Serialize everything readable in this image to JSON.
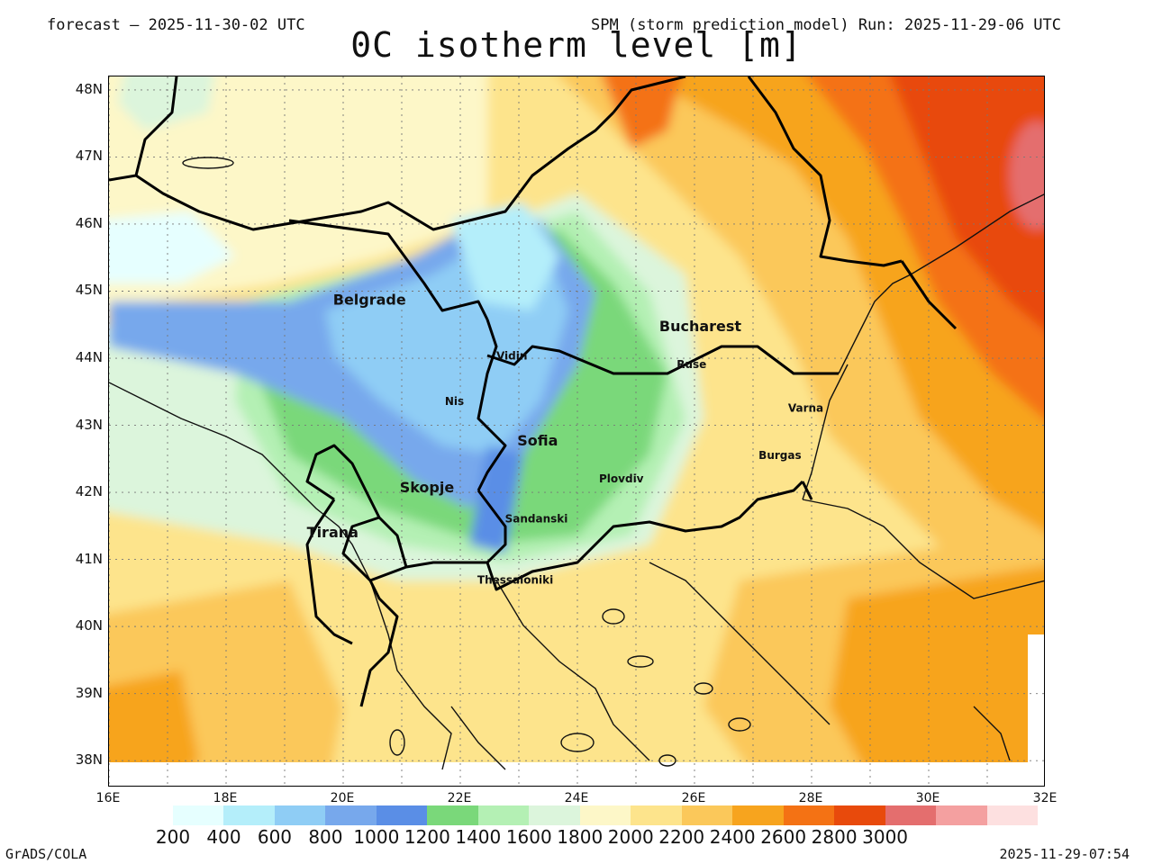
{
  "header": {
    "forecast_label": "forecast – 2025-11-30-02 UTC",
    "model_label": "SPM (storm prediction model) Run: 2025-11-29-06 UTC",
    "title": "0C isotherm level [m]"
  },
  "map": {
    "lon_range": [
      16,
      32
    ],
    "lat_range": [
      37.6,
      48.2
    ],
    "lat_labels": [
      "48N",
      "47N",
      "46N",
      "45N",
      "44N",
      "43N",
      "42N",
      "41N",
      "40N",
      "39N",
      "38N"
    ],
    "lat_values": [
      48,
      47,
      46,
      45,
      44,
      43,
      42,
      41,
      40,
      39,
      38
    ],
    "lon_labels": [
      "16E",
      "18E",
      "20E",
      "22E",
      "24E",
      "26E",
      "28E",
      "30E",
      "32E"
    ],
    "lon_values": [
      16,
      18,
      20,
      22,
      24,
      26,
      28,
      30,
      32
    ],
    "cities": [
      {
        "name": "Belgrade",
        "lon": 20.45,
        "lat": 44.8,
        "size": "large"
      },
      {
        "name": "Bucharest",
        "lon": 26.1,
        "lat": 44.4,
        "size": "large"
      },
      {
        "name": "Vidin",
        "lon": 22.88,
        "lat": 43.98,
        "size": "small"
      },
      {
        "name": "Ruse",
        "lon": 25.95,
        "lat": 43.85,
        "size": "small"
      },
      {
        "name": "Nis",
        "lon": 21.9,
        "lat": 43.3,
        "size": "small"
      },
      {
        "name": "Varna",
        "lon": 27.9,
        "lat": 43.2,
        "size": "small"
      },
      {
        "name": "Sofia",
        "lon": 23.32,
        "lat": 42.7,
        "size": "large"
      },
      {
        "name": "Burgas",
        "lon": 27.46,
        "lat": 42.5,
        "size": "small"
      },
      {
        "name": "Plovdiv",
        "lon": 24.75,
        "lat": 42.15,
        "size": "small"
      },
      {
        "name": "Skopje",
        "lon": 21.43,
        "lat": 42.0,
        "size": "large"
      },
      {
        "name": "Sandanski",
        "lon": 23.3,
        "lat": 41.55,
        "size": "small"
      },
      {
        "name": "Tirana",
        "lon": 19.82,
        "lat": 41.33,
        "size": "large"
      },
      {
        "name": "Thessaloniki",
        "lon": 22.94,
        "lat": 40.64,
        "size": "small"
      }
    ]
  },
  "legend": {
    "colors": [
      "#e6ffff",
      "#b4eefa",
      "#8fcdf5",
      "#77a8ec",
      "#5a8ee6",
      "#7ad87a",
      "#b4f0b4",
      "#dcf5dc",
      "#fdf7c8",
      "#fde48c",
      "#fbc85a",
      "#f7a41e",
      "#f47214",
      "#e84a0c",
      "#e46e6e",
      "#f4a0a0",
      "#fde0e0"
    ],
    "labels": [
      "200",
      "400",
      "600",
      "800",
      "1000",
      "1200",
      "1400",
      "1600",
      "1800",
      "2000",
      "2200",
      "2400",
      "2600",
      "2800",
      "3000"
    ]
  },
  "footer": {
    "software": "GrADS/COLA",
    "timestamp": "2025-11-29-07:54"
  }
}
